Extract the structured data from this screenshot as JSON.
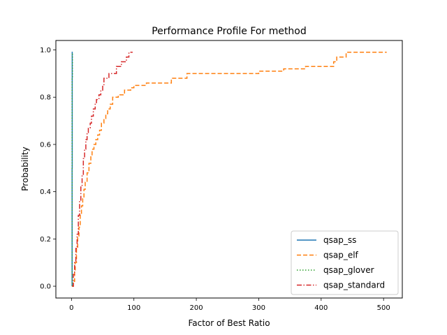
{
  "chart_data": {
    "type": "line",
    "title": "Performance Profile For method",
    "xlabel": "Factor of Best Ratio",
    "ylabel": "Probability",
    "xlim": [
      -25,
      530
    ],
    "ylim": [
      -0.05,
      1.04
    ],
    "xticks": [
      0,
      100,
      200,
      300,
      400,
      500
    ],
    "yticks": [
      0.0,
      0.2,
      0.4,
      0.6,
      0.8,
      1.0
    ],
    "xtick_labels": [
      "0",
      "100",
      "200",
      "300",
      "400",
      "500"
    ],
    "ytick_labels": [
      "0.0",
      "0.2",
      "0.4",
      "0.6",
      "0.8",
      "1.0"
    ],
    "grid": false,
    "legend_position": "lower right",
    "step": true,
    "series": [
      {
        "name": "qsap_ss",
        "color": "#1f77b4",
        "dash": "solid",
        "points": [
          [
            1,
            0.0
          ],
          [
            1,
            0.5
          ],
          [
            1.2,
            0.5
          ],
          [
            1.2,
            0.99
          ],
          [
            2,
            0.99
          ]
        ]
      },
      {
        "name": "qsap_elf",
        "color": "#ff7f0e",
        "dash": "dashed",
        "points": [
          [
            1,
            0.0
          ],
          [
            3,
            0.0
          ],
          [
            3,
            0.02
          ],
          [
            5,
            0.02
          ],
          [
            5,
            0.06
          ],
          [
            6,
            0.06
          ],
          [
            6,
            0.1
          ],
          [
            8,
            0.1
          ],
          [
            8,
            0.16
          ],
          [
            10,
            0.16
          ],
          [
            10,
            0.21
          ],
          [
            12,
            0.21
          ],
          [
            12,
            0.25
          ],
          [
            14,
            0.25
          ],
          [
            14,
            0.3
          ],
          [
            16,
            0.3
          ],
          [
            16,
            0.34
          ],
          [
            18,
            0.34
          ],
          [
            18,
            0.37
          ],
          [
            20,
            0.37
          ],
          [
            20,
            0.41
          ],
          [
            22,
            0.41
          ],
          [
            22,
            0.44
          ],
          [
            25,
            0.44
          ],
          [
            25,
            0.48
          ],
          [
            28,
            0.48
          ],
          [
            28,
            0.52
          ],
          [
            31,
            0.52
          ],
          [
            31,
            0.55
          ],
          [
            33,
            0.55
          ],
          [
            33,
            0.58
          ],
          [
            36,
            0.58
          ],
          [
            36,
            0.6
          ],
          [
            39,
            0.6
          ],
          [
            39,
            0.62
          ],
          [
            42,
            0.62
          ],
          [
            42,
            0.64
          ],
          [
            45,
            0.64
          ],
          [
            45,
            0.66
          ],
          [
            48,
            0.66
          ],
          [
            48,
            0.69
          ],
          [
            52,
            0.69
          ],
          [
            52,
            0.71
          ],
          [
            55,
            0.71
          ],
          [
            55,
            0.73
          ],
          [
            58,
            0.73
          ],
          [
            58,
            0.75
          ],
          [
            62,
            0.75
          ],
          [
            62,
            0.77
          ],
          [
            66,
            0.77
          ],
          [
            66,
            0.8
          ],
          [
            75,
            0.8
          ],
          [
            75,
            0.81
          ],
          [
            85,
            0.81
          ],
          [
            85,
            0.83
          ],
          [
            95,
            0.83
          ],
          [
            95,
            0.84
          ],
          [
            100,
            0.84
          ],
          [
            100,
            0.85
          ],
          [
            120,
            0.85
          ],
          [
            120,
            0.86
          ],
          [
            160,
            0.86
          ],
          [
            160,
            0.88
          ],
          [
            185,
            0.88
          ],
          [
            185,
            0.9
          ],
          [
            300,
            0.9
          ],
          [
            300,
            0.91
          ],
          [
            340,
            0.91
          ],
          [
            340,
            0.92
          ],
          [
            375,
            0.92
          ],
          [
            375,
            0.93
          ],
          [
            420,
            0.93
          ],
          [
            420,
            0.95
          ],
          [
            425,
            0.95
          ],
          [
            425,
            0.97
          ],
          [
            440,
            0.97
          ],
          [
            440,
            0.99
          ],
          [
            505,
            0.99
          ]
        ]
      },
      {
        "name": "qsap_glover",
        "color": "#2ca02c",
        "dash": "dotted",
        "points": [
          [
            1,
            0.0
          ],
          [
            1,
            0.88
          ],
          [
            1.5,
            0.88
          ],
          [
            1.5,
            0.99
          ],
          [
            2,
            0.99
          ]
        ]
      },
      {
        "name": "qsap_standard",
        "color": "#d62728",
        "dash": "dashdot",
        "points": [
          [
            1,
            0.0
          ],
          [
            3,
            0.0
          ],
          [
            3,
            0.05
          ],
          [
            5,
            0.05
          ],
          [
            5,
            0.1
          ],
          [
            7,
            0.1
          ],
          [
            7,
            0.16
          ],
          [
            9,
            0.16
          ],
          [
            9,
            0.22
          ],
          [
            11,
            0.22
          ],
          [
            11,
            0.3
          ],
          [
            13,
            0.3
          ],
          [
            13,
            0.36
          ],
          [
            15,
            0.36
          ],
          [
            15,
            0.42
          ],
          [
            17,
            0.42
          ],
          [
            17,
            0.47
          ],
          [
            19,
            0.47
          ],
          [
            19,
            0.54
          ],
          [
            21,
            0.54
          ],
          [
            21,
            0.58
          ],
          [
            23,
            0.58
          ],
          [
            23,
            0.62
          ],
          [
            25,
            0.62
          ],
          [
            25,
            0.65
          ],
          [
            27,
            0.65
          ],
          [
            27,
            0.67
          ],
          [
            30,
            0.67
          ],
          [
            30,
            0.69
          ],
          [
            32,
            0.69
          ],
          [
            32,
            0.72
          ],
          [
            35,
            0.72
          ],
          [
            35,
            0.75
          ],
          [
            38,
            0.75
          ],
          [
            38,
            0.77
          ],
          [
            40,
            0.77
          ],
          [
            40,
            0.79
          ],
          [
            44,
            0.79
          ],
          [
            44,
            0.81
          ],
          [
            47,
            0.81
          ],
          [
            47,
            0.83
          ],
          [
            50,
            0.83
          ],
          [
            50,
            0.85
          ],
          [
            52,
            0.85
          ],
          [
            52,
            0.88
          ],
          [
            60,
            0.88
          ],
          [
            60,
            0.9
          ],
          [
            72,
            0.9
          ],
          [
            72,
            0.93
          ],
          [
            80,
            0.93
          ],
          [
            80,
            0.95
          ],
          [
            88,
            0.95
          ],
          [
            88,
            0.97
          ],
          [
            92,
            0.97
          ],
          [
            92,
            0.99
          ],
          [
            98,
            0.99
          ]
        ]
      }
    ]
  }
}
